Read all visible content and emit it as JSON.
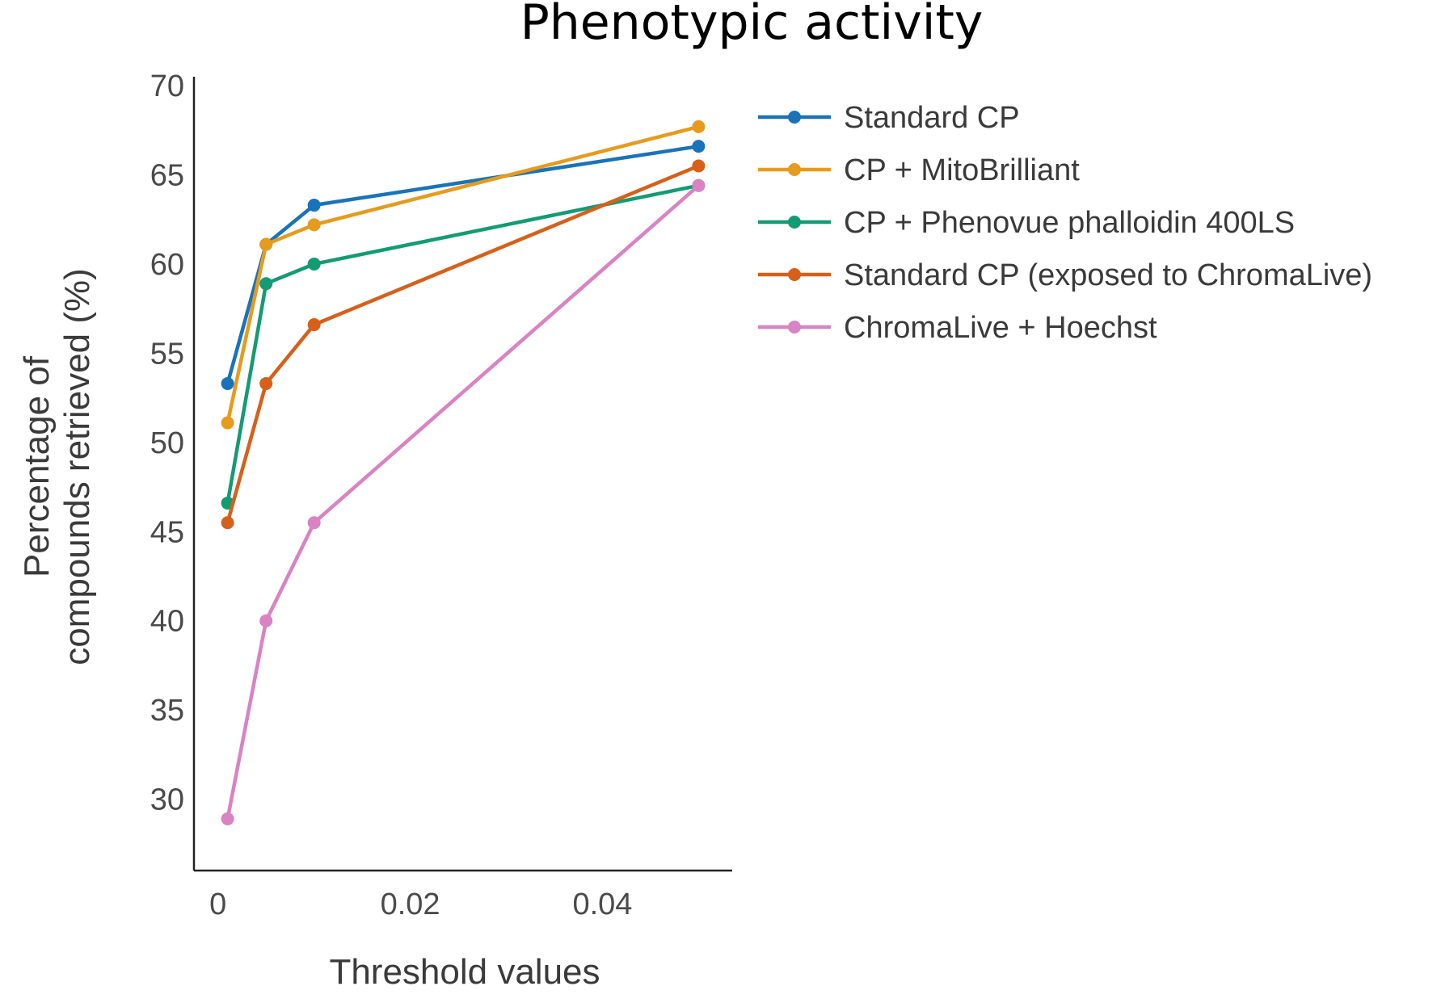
{
  "chart_data": {
    "type": "line",
    "title": "Phenotypic activity",
    "xlabel": "Threshold values",
    "ylabel_lines": [
      "Percentage of",
      "compounds retrieved (%)"
    ],
    "x": [
      0.001,
      0.005,
      0.01,
      0.05
    ],
    "x_ticks": [
      0,
      0.02,
      0.04
    ],
    "x_tick_labels": [
      "0",
      "0.02",
      "0.04"
    ],
    "y_ticks": [
      30,
      35,
      40,
      45,
      50,
      55,
      60,
      65,
      70
    ],
    "y_tick_labels": [
      "30",
      "35",
      "40",
      "45",
      "50",
      "55",
      "60",
      "65",
      "70"
    ],
    "xlim": [
      -0.0025,
      0.0535
    ],
    "ylim": [
      26,
      70.5
    ],
    "grid": false,
    "legend_position": "right",
    "series": [
      {
        "name": "Standard CP",
        "color": "#1a73b8",
        "values": [
          53.3,
          61.1,
          63.3,
          66.6
        ]
      },
      {
        "name": "CP + MitoBrilliant",
        "color": "#e69b1e",
        "values": [
          51.1,
          61.1,
          62.2,
          67.7
        ]
      },
      {
        "name": "CP + Phenovue phalloidin 400LS",
        "color": "#139b73",
        "values": [
          46.6,
          58.9,
          60.0,
          64.4
        ]
      },
      {
        "name": "Standard CP (exposed to ChromaLive)",
        "color": "#d6601a",
        "values": [
          45.5,
          53.3,
          56.6,
          65.5
        ]
      },
      {
        "name": "ChromaLive + Hoechst",
        "color": "#d982c4",
        "values": [
          28.9,
          40.0,
          45.5,
          64.4
        ]
      }
    ]
  }
}
